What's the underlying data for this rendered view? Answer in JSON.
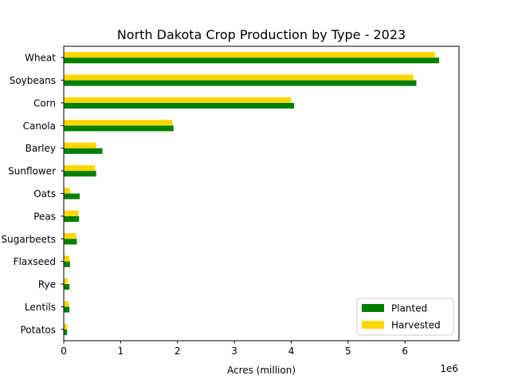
{
  "chart_data": {
    "type": "bar",
    "orientation": "horizontal",
    "title": "North Dakota Crop Production by Type - 2023",
    "xlabel": "Acres (million)",
    "ylabel": "",
    "x_offset_label": "1e6",
    "xlim": [
      0,
      6950000
    ],
    "xticks": [
      0,
      1000000,
      2000000,
      3000000,
      4000000,
      5000000,
      6000000
    ],
    "xtick_labels": [
      "0",
      "1",
      "2",
      "3",
      "4",
      "5",
      "6"
    ],
    "grid": false,
    "legend_position": "lower-right",
    "categories": [
      "Wheat",
      "Soybeans",
      "Corn",
      "Canola",
      "Barley",
      "Sunflower",
      "Oats",
      "Peas",
      "Sugarbeets",
      "Flaxseed",
      "Rye",
      "Lentils",
      "Potatos"
    ],
    "series": [
      {
        "name": "Planted",
        "color": "#008000",
        "values": [
          6600000,
          6200000,
          4050000,
          1930000,
          680000,
          570000,
          280000,
          270000,
          230000,
          110000,
          100000,
          100000,
          60000
        ]
      },
      {
        "name": "Harvested",
        "color": "#ffd700",
        "values": [
          6530000,
          6150000,
          4000000,
          1910000,
          570000,
          550000,
          110000,
          260000,
          220000,
          100000,
          70000,
          90000,
          60000
        ]
      }
    ]
  }
}
